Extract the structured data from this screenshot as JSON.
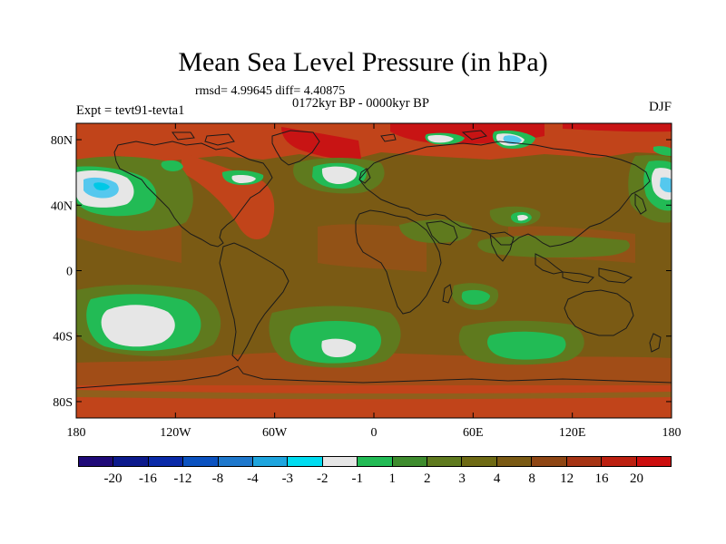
{
  "title": "Mean Sea Level Pressure (in hPa)",
  "stats": "rmsd= 4.99645 diff= 4.40875",
  "period": "0172kyr BP - 0000kyr BP",
  "experiment": "Expt = tevt91-tevta1",
  "season": "DJF",
  "axes": {
    "y_labels": [
      "80N",
      "40N",
      "0",
      "40S",
      "80S"
    ],
    "y_values": [
      80,
      40,
      0,
      -40,
      -80
    ],
    "x_labels": [
      "180",
      "120W",
      "60W",
      "0",
      "60E",
      "120E",
      "180"
    ],
    "x_values": [
      -180,
      -120,
      -60,
      0,
      60,
      120,
      180
    ]
  },
  "colors": {
    "base": "#7a5a14",
    "light_red": "#c1441a",
    "red": "#c81414",
    "dark_green": "#5f7a1e",
    "green": "#22bb55",
    "white": "#e6e6e6",
    "cyan": "#00c8e6",
    "light_blue": "#55c8ee",
    "coast": "#1a1a1a"
  },
  "colorbar": {
    "colors": [
      "#1f0a78",
      "#0c1a8c",
      "#0a2aa8",
      "#0b52c0",
      "#1e78cc",
      "#1ea5de",
      "#00dcf0",
      "#e6e6e6",
      "#22bb55",
      "#3e8c2e",
      "#5f7a1e",
      "#6e6a14",
      "#7a5a14",
      "#8e4614",
      "#a63414",
      "#bc2010",
      "#cc0e0e"
    ],
    "labels": [
      "-20",
      "-16",
      "-12",
      "-8",
      "-4",
      "-3",
      "-2",
      "-1",
      "1",
      "2",
      "3",
      "4",
      "8",
      "12",
      "16",
      "20"
    ]
  }
}
